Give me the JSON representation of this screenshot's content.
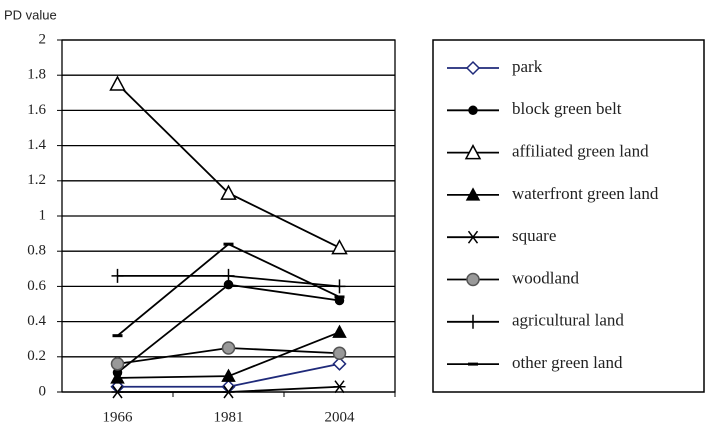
{
  "chart_data": {
    "type": "line",
    "y_label": "PD value",
    "categories": [
      "1966",
      "1981",
      "2004"
    ],
    "ylim": [
      0,
      2
    ],
    "yticks": [
      0,
      0.2,
      0.4,
      0.6,
      0.8,
      1,
      1.2,
      1.4,
      1.6,
      1.8,
      2
    ],
    "grid": true,
    "series": [
      {
        "name": "park",
        "color": "#1f2a7a",
        "marker": "diamond",
        "values": [
          0.03,
          0.03,
          0.16
        ]
      },
      {
        "name": "block green belt",
        "color": "#000000",
        "marker": "circle",
        "values": [
          0.11,
          0.61,
          0.52
        ]
      },
      {
        "name": "affiliated green land",
        "color": "#000000",
        "marker": "triangle-open",
        "values": [
          1.75,
          1.13,
          0.82
        ]
      },
      {
        "name": "waterfront green land",
        "color": "#000000",
        "marker": "triangle",
        "values": [
          0.08,
          0.09,
          0.34
        ]
      },
      {
        "name": "square",
        "color": "#000000",
        "marker": "asterisk",
        "values": [
          0,
          0,
          0.03
        ]
      },
      {
        "name": "woodland",
        "color": "#000000",
        "marker": "circle-gray",
        "values": [
          0.16,
          0.25,
          0.22
        ]
      },
      {
        "name": "agricultural land",
        "color": "#000000",
        "marker": "plus",
        "values": [
          0.66,
          0.66,
          0.6
        ]
      },
      {
        "name": "other green land",
        "color": "#000000",
        "marker": "dash",
        "values": [
          0.32,
          0.84,
          0.54
        ]
      }
    ]
  }
}
